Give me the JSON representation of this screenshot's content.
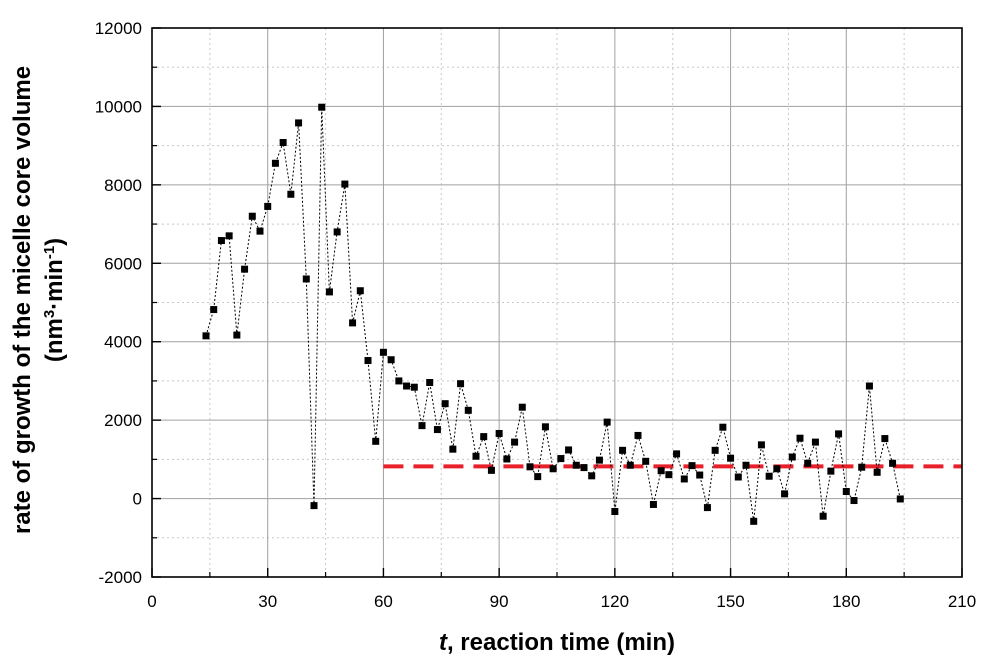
{
  "chart_data": {
    "type": "scatter",
    "xlabel": {
      "italic": "t",
      "rest": ", reaction time (min)"
    },
    "ylabel": {
      "line1": "rate of growth of the micelle core volume",
      "line2_base": "(nm",
      "line2_sup1": "3",
      "line2_mid": "·min",
      "line2_sup2": "-1",
      "line2_end": ")"
    },
    "xlim": [
      0,
      210
    ],
    "ylim": [
      -2000,
      12000
    ],
    "xticks": [
      0,
      30,
      60,
      90,
      120,
      150,
      180,
      210
    ],
    "yticks": [
      -2000,
      0,
      2000,
      4000,
      6000,
      8000,
      10000,
      12000
    ],
    "xtick_labels": [
      "0",
      "30",
      "60",
      "90",
      "120",
      "150",
      "180",
      "210"
    ],
    "ytick_labels": [
      "-2000",
      "0",
      "2000",
      "4000",
      "6000",
      "8000",
      "10000",
      "12000"
    ],
    "grid": true,
    "colors": {
      "points": "#000000",
      "reference_line": "#e8202a",
      "major_grid": "#a0a0a0",
      "minor_grid": "#c8c8c8"
    },
    "series": [
      {
        "marker": "square",
        "line_style": "dotted",
        "x": [
          14,
          16,
          18,
          20,
          22,
          24,
          26,
          28,
          30,
          32,
          34,
          36,
          38,
          40,
          42,
          44,
          46,
          48,
          50,
          52,
          54,
          56,
          58,
          60,
          62,
          64,
          66,
          68,
          70,
          72,
          74,
          76,
          78,
          80,
          82,
          84,
          86,
          88,
          90,
          92,
          94,
          96,
          98,
          100,
          102,
          104,
          106,
          108,
          110,
          112,
          114,
          116,
          118,
          120,
          122,
          124,
          126,
          128,
          130,
          132,
          134,
          136,
          138,
          140,
          142,
          144,
          146,
          148,
          150,
          152,
          154,
          156,
          158,
          160,
          162,
          164,
          166,
          168,
          170,
          172,
          174,
          176,
          178,
          180,
          182,
          184,
          186,
          188,
          190,
          192,
          194
        ],
        "y": [
          4150,
          4820,
          6580,
          6700,
          4170,
          5850,
          7200,
          6820,
          7450,
          8550,
          9080,
          7760,
          9580,
          5600,
          -180,
          9980,
          5270,
          6800,
          8020,
          4480,
          5300,
          3520,
          1460,
          3730,
          3540,
          3000,
          2870,
          2840,
          1860,
          2960,
          1760,
          2420,
          1260,
          2930,
          2250,
          1080,
          1580,
          720,
          1660,
          1010,
          1440,
          2330,
          810,
          560,
          1830,
          760,
          1020,
          1240,
          850,
          790,
          580,
          980,
          1950,
          -330,
          1230,
          850,
          1610,
          950,
          -150,
          710,
          610,
          1140,
          500,
          840,
          600,
          -230,
          1230,
          1820,
          1030,
          550,
          850,
          -580,
          1370,
          570,
          760,
          120,
          1060,
          1540,
          900,
          1440,
          -450,
          700,
          1650,
          180,
          -50,
          800,
          2870,
          670,
          1530,
          900,
          -10
        ]
      }
    ],
    "reference_line": {
      "style": "dashed",
      "x": [
        60,
        210
      ],
      "y": 820
    }
  }
}
